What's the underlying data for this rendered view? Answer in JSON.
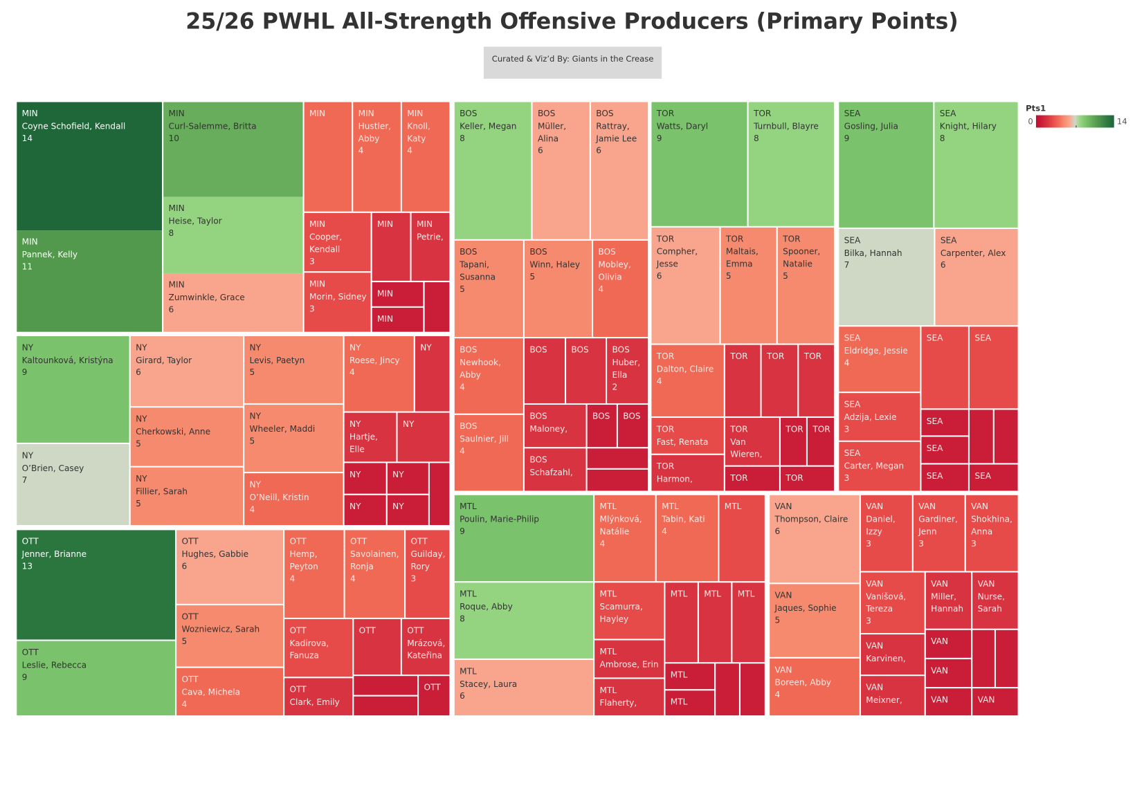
{
  "chart_data": {
    "type": "treemap",
    "title": "25/26 PWHL All-Strength Offensive Producers (Primary Points)",
    "subtitle": "Curated & Viz’d By: Giants in the Crease",
    "legend": {
      "title": "Pts1",
      "range": [
        0,
        14
      ]
    },
    "palette": [
      "#be0f2e",
      "#c91d38",
      "#d83341",
      "#e64b4a",
      "#f06955",
      "#f68a6e",
      "#f9a58e",
      "#cfd8c5",
      "#94d480",
      "#7ac26b",
      "#67ad5b",
      "#52994e",
      "#3f8746",
      "#2b763f",
      "#1f6639"
    ],
    "cells": [
      {
        "team": "MIN",
        "name": "Coyne Schofield, Kendall",
        "value": 14
      },
      {
        "team": "MIN",
        "name": "Pannek, Kelly",
        "value": 11
      },
      {
        "team": "MIN",
        "name": "Curl-Salemme, Britta",
        "value": 10
      },
      {
        "team": "MIN",
        "name": "Heise, Taylor",
        "value": 8
      },
      {
        "team": "MIN",
        "name": "Zumwinkle, Grace",
        "value": 6
      },
      {
        "team": "MIN",
        "name": null,
        "value": 4
      },
      {
        "team": "MIN",
        "name": "Hustler, Abby",
        "value": 4
      },
      {
        "team": "MIN",
        "name": "Knoll, Katy",
        "value": 4
      },
      {
        "team": "MIN",
        "name": "Cooper, Kendall",
        "value": 3
      },
      {
        "team": "MIN",
        "name": null,
        "value": 2
      },
      {
        "team": "MIN",
        "name": "Petrie,",
        "value": 2
      },
      {
        "team": "MIN",
        "name": "Morin, Sidney",
        "value": 3
      },
      {
        "team": "MIN",
        "name": null,
        "value": 1
      },
      {
        "team": "MIN",
        "name": null,
        "value": 1
      },
      {
        "team": null,
        "name": null,
        "value": 1
      },
      {
        "team": "NY",
        "name": "Kaltounková, Kristýna",
        "value": 9
      },
      {
        "team": "NY",
        "name": "O’Brien, Casey",
        "value": 7
      },
      {
        "team": "NY",
        "name": "Girard, Taylor",
        "value": 6
      },
      {
        "team": "NY",
        "name": "Cherkowski, Anne",
        "value": 5
      },
      {
        "team": "NY",
        "name": "Fillier, Sarah",
        "value": 5
      },
      {
        "team": "NY",
        "name": "Levis, Paetyn",
        "value": 5
      },
      {
        "team": "NY",
        "name": "Wheeler, Maddi",
        "value": 5
      },
      {
        "team": "NY",
        "name": "O’Neill, Kristin",
        "value": 4
      },
      {
        "team": "NY",
        "name": "Roese, Jincy",
        "value": 4
      },
      {
        "team": "NY",
        "name": null,
        "value": 2
      },
      {
        "team": "NY",
        "name": "Hartje, Elle",
        "value": 2
      },
      {
        "team": "NY",
        "name": null,
        "value": 2
      },
      {
        "team": "NY",
        "name": null,
        "value": 1
      },
      {
        "team": "NY",
        "name": null,
        "value": 1
      },
      {
        "team": null,
        "name": null,
        "value": 1
      },
      {
        "team": "NY",
        "name": null,
        "value": 1
      },
      {
        "team": "NY",
        "name": null,
        "value": 1
      },
      {
        "team": "OTT",
        "name": "Jenner, Brianne",
        "value": 13
      },
      {
        "team": "OTT",
        "name": "Leslie, Rebecca",
        "value": 9
      },
      {
        "team": "OTT",
        "name": "Hughes, Gabbie",
        "value": 6
      },
      {
        "team": "OTT",
        "name": "Wozniewicz, Sarah",
        "value": 5
      },
      {
        "team": "OTT",
        "name": "Cava, Michela",
        "value": 4
      },
      {
        "team": "OTT",
        "name": "Hemp, Peyton",
        "value": 4
      },
      {
        "team": "OTT",
        "name": "Savolainen, Ronja",
        "value": 4
      },
      {
        "team": "OTT",
        "name": "Guilday, Rory",
        "value": 3
      },
      {
        "team": "OTT",
        "name": "Kadirova, Fanuza",
        "value": 3
      },
      {
        "team": "OTT",
        "name": "Clark, Emily",
        "value": 2
      },
      {
        "team": "OTT",
        "name": null,
        "value": 2
      },
      {
        "team": "OTT",
        "name": "Mrázová, Kateřina",
        "value": 2
      },
      {
        "team": null,
        "name": null,
        "value": 1
      },
      {
        "team": null,
        "name": null,
        "value": 1
      },
      {
        "team": "OTT",
        "name": null,
        "value": 1
      },
      {
        "team": "BOS",
        "name": "Keller, Megan",
        "value": 8
      },
      {
        "team": "BOS",
        "name": "Müller, Alina",
        "value": 6
      },
      {
        "team": "BOS",
        "name": "Rattray, Jamie Lee",
        "value": 6
      },
      {
        "team": "BOS",
        "name": "Tapani, Susanna",
        "value": 5
      },
      {
        "team": "BOS",
        "name": "Winn, Haley",
        "value": 5
      },
      {
        "team": "BOS",
        "name": "Mobley, Olivia",
        "value": 4
      },
      {
        "team": "BOS",
        "name": "Newhook, Abby",
        "value": 4
      },
      {
        "team": "BOS",
        "name": "Saulnier, Jill",
        "value": 4
      },
      {
        "team": "BOS",
        "name": null,
        "value": 2
      },
      {
        "team": "BOS",
        "name": null,
        "value": 2
      },
      {
        "team": "BOS",
        "name": "Huber, Ella",
        "value": 2
      },
      {
        "team": "BOS",
        "name": "Maloney,",
        "value": 2
      },
      {
        "team": "BOS",
        "name": null,
        "value": 1
      },
      {
        "team": "BOS",
        "name": null,
        "value": 1
      },
      {
        "team": "BOS",
        "name": "Schafzahl,",
        "value": 2
      },
      {
        "team": null,
        "name": null,
        "value": 1
      },
      {
        "team": null,
        "name": null,
        "value": 1
      },
      {
        "team": "TOR",
        "name": "Watts, Daryl",
        "value": 9
      },
      {
        "team": "TOR",
        "name": "Turnbull, Blayre",
        "value": 8
      },
      {
        "team": "TOR",
        "name": "Compher, Jesse",
        "value": 6
      },
      {
        "team": "TOR",
        "name": "Maltais, Emma",
        "value": 5
      },
      {
        "team": "TOR",
        "name": "Spooner, Natalie",
        "value": 5
      },
      {
        "team": "TOR",
        "name": "Dalton, Claire",
        "value": 4
      },
      {
        "team": "TOR",
        "name": null,
        "value": 2
      },
      {
        "team": "TOR",
        "name": null,
        "value": 2
      },
      {
        "team": "TOR",
        "name": null,
        "value": 2
      },
      {
        "team": "TOR",
        "name": "Fast, Renata",
        "value": 3
      },
      {
        "team": "TOR",
        "name": "Harmon,",
        "value": 2
      },
      {
        "team": "TOR",
        "name": "Van Wieren,",
        "value": 2
      },
      {
        "team": "TOR",
        "name": null,
        "value": 1
      },
      {
        "team": "TOR",
        "name": null,
        "value": 1
      },
      {
        "team": "TOR",
        "name": null,
        "value": 1
      },
      {
        "team": "TOR",
        "name": null,
        "value": 1
      },
      {
        "team": "SEA",
        "name": "Gosling, Julia",
        "value": 9
      },
      {
        "team": "SEA",
        "name": "Knight, Hilary",
        "value": 8
      },
      {
        "team": "SEA",
        "name": "Bilka, Hannah",
        "value": 7
      },
      {
        "team": "SEA",
        "name": "Carpenter, Alex",
        "value": 6
      },
      {
        "team": "SEA",
        "name": "Eldridge, Jessie",
        "value": 4
      },
      {
        "team": "SEA",
        "name": null,
        "value": 3
      },
      {
        "team": "SEA",
        "name": null,
        "value": 3
      },
      {
        "team": "SEA",
        "name": "Adzija, Lexie",
        "value": 3
      },
      {
        "team": "SEA",
        "name": "Carter, Megan",
        "value": 3
      },
      {
        "team": "SEA",
        "name": null,
        "value": 1
      },
      {
        "team": null,
        "name": null,
        "value": 1
      },
      {
        "team": null,
        "name": null,
        "value": 1
      },
      {
        "team": "SEA",
        "name": null,
        "value": 1
      },
      {
        "team": "SEA",
        "name": null,
        "value": 1
      },
      {
        "team": "SEA",
        "name": null,
        "value": 1
      },
      {
        "team": "MTL",
        "name": "Poulin, Marie-Philip",
        "value": 9
      },
      {
        "team": "MTL",
        "name": "Roque, Abby",
        "value": 8
      },
      {
        "team": "MTL",
        "name": "Stacey, Laura",
        "value": 6
      },
      {
        "team": "MTL",
        "name": "Mlýnková, Natálie",
        "value": 4
      },
      {
        "team": "MTL",
        "name": "Tabin, Kati",
        "value": 4
      },
      {
        "team": "MTL",
        "name": null,
        "value": 3
      },
      {
        "team": "MTL",
        "name": "Scamurra, Hayley",
        "value": 3
      },
      {
        "team": "MTL",
        "name": "Ambrose, Erin",
        "value": 2
      },
      {
        "team": "MTL",
        "name": "Flaherty,",
        "value": 2
      },
      {
        "team": "MTL",
        "name": null,
        "value": 2
      },
      {
        "team": "MTL",
        "name": null,
        "value": 2
      },
      {
        "team": "MTL",
        "name": null,
        "value": 2
      },
      {
        "team": "MTL",
        "name": null,
        "value": 1
      },
      {
        "team": "MTL",
        "name": null,
        "value": 1
      },
      {
        "team": null,
        "name": null,
        "value": 1
      },
      {
        "team": null,
        "name": null,
        "value": 1
      },
      {
        "team": "VAN",
        "name": "Thompson, Claire",
        "value": 6
      },
      {
        "team": "VAN",
        "name": "Jaques, Sophie",
        "value": 5
      },
      {
        "team": "VAN",
        "name": "Boreen, Abby",
        "value": 4
      },
      {
        "team": "VAN",
        "name": "Daniel, Izzy",
        "value": 3
      },
      {
        "team": "VAN",
        "name": "Gardiner, Jenn",
        "value": 3
      },
      {
        "team": "VAN",
        "name": "Shokhina, Anna",
        "value": 3
      },
      {
        "team": "VAN",
        "name": "Vanišová, Tereza",
        "value": 3
      },
      {
        "team": "VAN",
        "name": "Miller, Hannah",
        "value": 2
      },
      {
        "team": "VAN",
        "name": "Nurse, Sarah",
        "value": 2
      },
      {
        "team": "VAN",
        "name": "Karvinen,",
        "value": 2
      },
      {
        "team": "VAN",
        "name": "Meixner,",
        "value": 2
      },
      {
        "team": "VAN",
        "name": null,
        "value": 1
      },
      {
        "team": null,
        "name": null,
        "value": 1
      },
      {
        "team": null,
        "name": null,
        "value": 1
      },
      {
        "team": "VAN",
        "name": null,
        "value": 1
      },
      {
        "team": "VAN",
        "name": null,
        "value": 1
      },
      {
        "team": "VAN",
        "name": null,
        "value": 1
      }
    ]
  }
}
